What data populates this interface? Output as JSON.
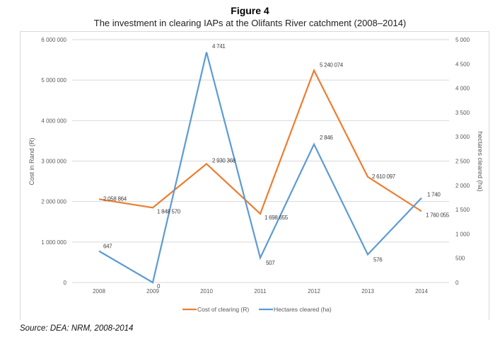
{
  "figure": {
    "title": "Figure 4",
    "subtitle": "The investment in clearing IAPs at the Olifants River catchment (2008–2014)",
    "source": "Source: DEA: NRM, 2008-2014"
  },
  "chart_data": {
    "type": "line",
    "title": "The investment in clearing IAPs at the Olifants River catchment (2008–2014)",
    "categories": [
      "2008",
      "2009",
      "2010",
      "2011",
      "2012",
      "2013",
      "2014"
    ],
    "series": [
      {
        "name": "Cost of clearing (R)",
        "axis": "left",
        "color": "#ED7D31",
        "values": [
          2058864,
          1848570,
          2930368,
          1698655,
          5240074,
          2610097,
          1760055
        ],
        "labels": [
          "2 058 864",
          "1 848 570",
          "2 930 368",
          "1 698 655",
          "5 240 074",
          "2 610 097",
          "1 760 055"
        ]
      },
      {
        "name": "Hectares cleared (ha)",
        "axis": "right",
        "color": "#5B9BD5",
        "values": [
          647,
          0,
          4741,
          507,
          2846,
          576,
          1740
        ],
        "labels": [
          "647",
          "0",
          "4 741",
          "507",
          "2 846",
          "576",
          "1 740"
        ]
      }
    ],
    "ylabel": "Cost in Rand (R)",
    "ylim": [
      0,
      6000000
    ],
    "yticks": [
      "0",
      "1 000 000",
      "2 000 000",
      "3 000 000",
      "4 000 000",
      "5 000 000",
      "6 000 000"
    ],
    "y2label": "hectares cleared (ha)",
    "y2lim": [
      0,
      5000
    ],
    "y2ticks": [
      "0",
      "500",
      "1 000",
      "1 500",
      "2 000",
      "2 500",
      "3 000",
      "3 500",
      "4 000",
      "4 500",
      "5 000"
    ],
    "grid": true,
    "legend": "bottom"
  }
}
